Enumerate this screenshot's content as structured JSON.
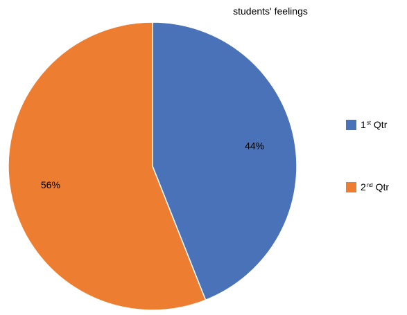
{
  "chart_data": {
    "type": "pie",
    "title": "students' feelings",
    "legend_position": "right",
    "slices": [
      {
        "number": "1",
        "suffix": "st",
        "word": "Qtr",
        "value": 44,
        "label": "44%",
        "color": "#4a72b8"
      },
      {
        "number": "2",
        "suffix": "nd",
        "word": "Qtr",
        "value": 56,
        "label": "56%",
        "color": "#ed7d31"
      }
    ]
  }
}
